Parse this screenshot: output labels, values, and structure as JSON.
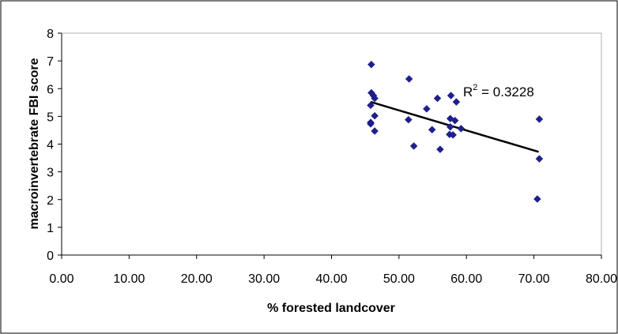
{
  "chart_data": {
    "type": "scatter",
    "title": "",
    "xlabel": "% forested landcover",
    "ylabel": "macroinvertebrate FBI score",
    "xlim": [
      0,
      80
    ],
    "ylim": [
      0,
      8
    ],
    "x_ticks": [
      "0.00",
      "10.00",
      "20.00",
      "30.00",
      "40.00",
      "50.00",
      "60.00",
      "70.00",
      "80.00"
    ],
    "y_ticks": [
      "0",
      "1",
      "2",
      "3",
      "4",
      "5",
      "6",
      "7",
      "8"
    ],
    "grid": false,
    "legend": "none",
    "marker": "diamond",
    "marker_color": "#1f1f8c",
    "trendline": {
      "type": "linear",
      "x": [
        45.8,
        70.7
      ],
      "y": [
        5.52,
        3.72
      ],
      "color": "#000000"
    },
    "annotation": {
      "text": "R",
      "superscript": "2",
      "suffix": " = 0.3228"
    },
    "series": [
      {
        "points": [
          {
            "x": 45.9,
            "y": 6.87
          },
          {
            "x": 45.9,
            "y": 5.85
          },
          {
            "x": 46.2,
            "y": 5.75
          },
          {
            "x": 46.4,
            "y": 5.65
          },
          {
            "x": 45.8,
            "y": 5.4
          },
          {
            "x": 46.4,
            "y": 5.02
          },
          {
            "x": 45.8,
            "y": 4.78
          },
          {
            "x": 45.8,
            "y": 4.73
          },
          {
            "x": 46.4,
            "y": 4.47
          },
          {
            "x": 51.5,
            "y": 6.35
          },
          {
            "x": 51.4,
            "y": 4.88
          },
          {
            "x": 52.2,
            "y": 3.93
          },
          {
            "x": 54.1,
            "y": 5.27
          },
          {
            "x": 54.9,
            "y": 4.52
          },
          {
            "x": 55.7,
            "y": 5.65
          },
          {
            "x": 56.1,
            "y": 3.81
          },
          {
            "x": 57.7,
            "y": 5.75
          },
          {
            "x": 57.6,
            "y": 4.92
          },
          {
            "x": 58.3,
            "y": 4.85
          },
          {
            "x": 58.5,
            "y": 5.52
          },
          {
            "x": 57.6,
            "y": 4.62
          },
          {
            "x": 59.2,
            "y": 4.56
          },
          {
            "x": 57.5,
            "y": 4.35
          },
          {
            "x": 58.0,
            "y": 4.33
          },
          {
            "x": 70.8,
            "y": 4.9
          },
          {
            "x": 70.8,
            "y": 3.47
          },
          {
            "x": 70.5,
            "y": 2.02
          }
        ]
      }
    ]
  }
}
